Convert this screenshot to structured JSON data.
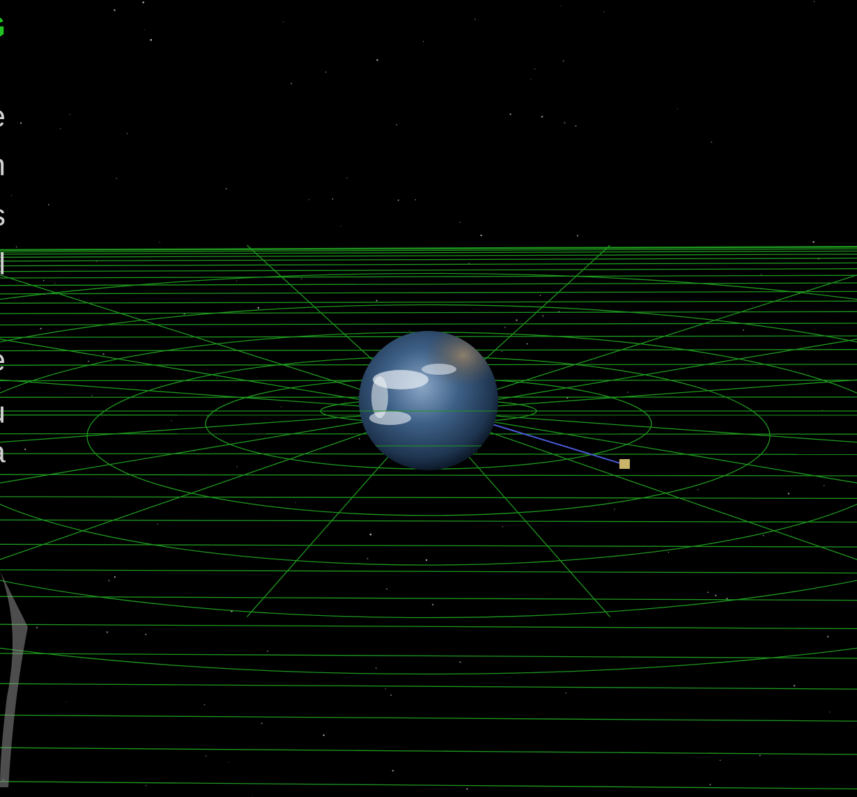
{
  "left_panel": {
    "heading_fragment": "G",
    "line_fragments": [
      "e",
      "n",
      "s",
      "l",
      "e",
      "u",
      "a"
    ]
  }
}
